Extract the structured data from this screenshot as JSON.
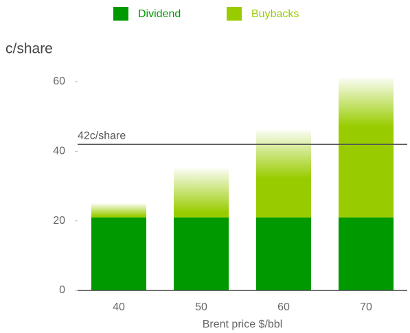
{
  "chart_data": {
    "type": "bar",
    "stacked": true,
    "y_label": "c/share",
    "x_label": "Brent price $/bbl",
    "categories": [
      "40",
      "50",
      "60",
      "70"
    ],
    "series": [
      {
        "name": "Dividend",
        "color": "#009a00",
        "values": [
          21,
          21,
          21,
          21
        ]
      },
      {
        "name": "Buybacks",
        "color": "#99cc00",
        "values": [
          4,
          14,
          25,
          40
        ]
      }
    ],
    "ylim": [
      0,
      60
    ],
    "yticks": [
      0,
      20,
      40,
      60
    ],
    "reference_line": {
      "value": 42,
      "label": "42c/share",
      "color": "#555555"
    }
  }
}
